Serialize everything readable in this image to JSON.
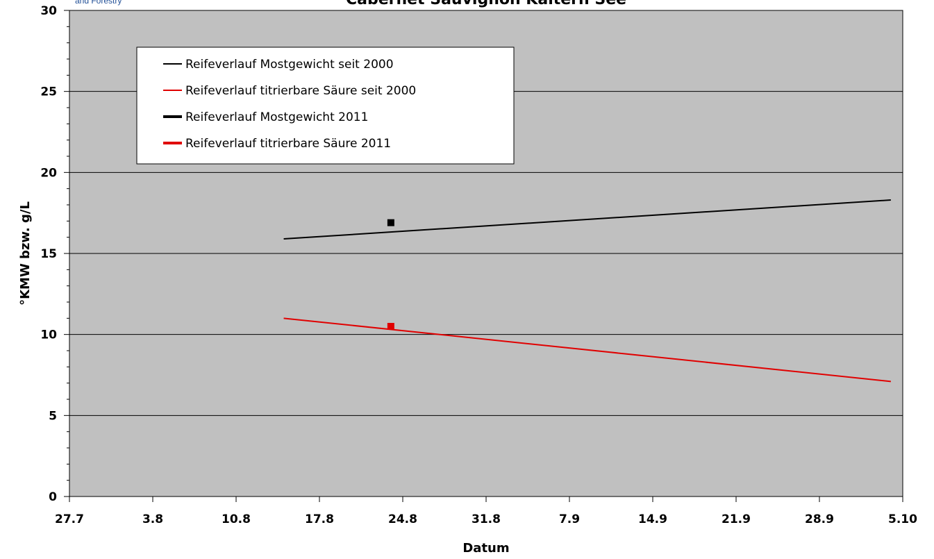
{
  "logo": {
    "text": "and Forestry"
  },
  "chart_data": {
    "type": "line",
    "title": "Cabernet Sauvignon Kaltern See",
    "xlabel": "Datum",
    "ylabel": "°KMW bzw. g/L",
    "x_tick_labels": [
      "27.7",
      "3.8",
      "10.8",
      "17.8",
      "24.8",
      "31.8",
      "7.9",
      "14.9",
      "21.9",
      "28.9",
      "5.10"
    ],
    "x_range": [
      "27.7",
      "5.10"
    ],
    "ylim": [
      0,
      30
    ],
    "y_ticks": [
      0,
      5,
      10,
      15,
      20,
      25,
      30
    ],
    "grid": "horizontal major lines",
    "plot_background": "#c0c0c0",
    "legend": {
      "placement": "top-left"
    },
    "series": [
      {
        "name": "Reifeverlauf Mostgewicht seit 2000",
        "kind": "line",
        "color": "#000000",
        "x": [
          "14.8",
          "4.10"
        ],
        "y": [
          15.9,
          18.3
        ]
      },
      {
        "name": "Reifeverlauf titrierbare Säure seit 2000",
        "kind": "line",
        "color": "#e00000",
        "x": [
          "14.8",
          "4.10"
        ],
        "y": [
          11.0,
          7.1
        ]
      },
      {
        "name": "Reifeverlauf Mostgewicht 2011",
        "kind": "marker",
        "color": "#000000",
        "x": [
          "23.8"
        ],
        "y": [
          16.9
        ]
      },
      {
        "name": "Reifeverlauf titrierbare Säure 2011",
        "kind": "marker",
        "color": "#e00000",
        "x": [
          "23.8"
        ],
        "y": [
          10.5
        ]
      }
    ]
  }
}
